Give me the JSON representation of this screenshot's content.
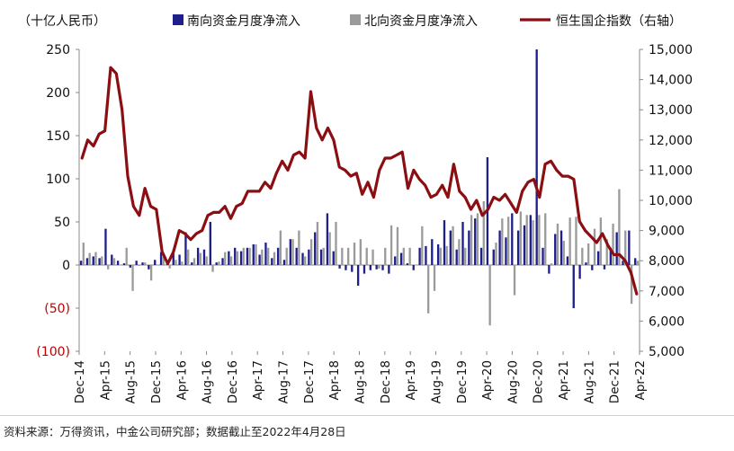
{
  "source": "资料来源：万得资讯，中金公司研究部；数据截止至2022年4月28日",
  "chart_data": {
    "type": "bar",
    "title": "",
    "ylabel": "（十亿人民币）",
    "y2label": "",
    "ylim": [
      -100,
      250
    ],
    "yticks_labels": [
      "250",
      "200",
      "150",
      "100",
      "50",
      "0",
      "(50)",
      "(100)"
    ],
    "y2lim": [
      5000,
      15000
    ],
    "y2ticks_labels": [
      "15,000",
      "14,000",
      "13,000",
      "12,000",
      "11,000",
      "10,000",
      "9,000",
      "8,000",
      "7,000",
      "6,000",
      "5,000"
    ],
    "x_tick_labels": [
      "Dec-14",
      "Apr-15",
      "Aug-15",
      "Dec-15",
      "Apr-16",
      "Aug-16",
      "Dec-16",
      "Apr-17",
      "Aug-17",
      "Dec-17",
      "Apr-18",
      "Aug-18",
      "Dec-18",
      "Apr-19",
      "Aug-19",
      "Dec-19",
      "Apr-20",
      "Aug-20",
      "Dec-20",
      "Apr-21",
      "Aug-21",
      "Dec-21",
      "Apr-22"
    ],
    "x_start": "2014-12",
    "legend": {
      "position": "top",
      "entries": [
        "南向资金月度净流入",
        "北向资金月度净流入",
        "恒生国企指数（右轴）"
      ]
    },
    "colors": {
      "southbound": "#1f1f8c",
      "northbound": "#9b9b9b",
      "hscei": "#8b0f12",
      "negative_tick": "#c00000"
    },
    "series": [
      {
        "name": "南向资金月度净流入",
        "type": "bar",
        "axis": "left",
        "values": [
          5,
          8,
          10,
          8,
          42,
          12,
          5,
          2,
          -3,
          5,
          3,
          -5,
          6,
          15,
          2,
          18,
          12,
          38,
          3,
          20,
          18,
          50,
          3,
          8,
          16,
          20,
          16,
          20,
          24,
          12,
          26,
          8,
          20,
          6,
          30,
          20,
          14,
          18,
          38,
          18,
          60,
          16,
          -4,
          -6,
          -8,
          -24,
          -10,
          -6,
          -5,
          -6,
          -10,
          10,
          14,
          2,
          -6,
          20,
          22,
          30,
          24,
          52,
          40,
          18,
          50,
          40,
          54,
          20,
          125,
          18,
          40,
          32,
          60,
          40,
          46,
          58,
          250,
          20,
          -10,
          36,
          40,
          10,
          -50,
          -16,
          3,
          -6,
          16,
          -5,
          20,
          38,
          5,
          40,
          8
        ]
      },
      {
        "name": "北向资金月度净流入",
        "type": "bar",
        "axis": "left",
        "values": [
          26,
          14,
          15,
          10,
          -5,
          8,
          0,
          20,
          -30,
          -1,
          3,
          -18,
          0,
          10,
          -4,
          6,
          4,
          18,
          8,
          14,
          10,
          -8,
          4,
          15,
          10,
          16,
          20,
          20,
          24,
          18,
          20,
          15,
          40,
          20,
          30,
          40,
          10,
          30,
          50,
          20,
          38,
          50,
          20,
          20,
          26,
          30,
          20,
          18,
          -4,
          20,
          46,
          44,
          20,
          20,
          0,
          45,
          -56,
          -30,
          20,
          22,
          45,
          30,
          20,
          58,
          60,
          74,
          -70,
          26,
          54,
          56,
          -35,
          62,
          58,
          52,
          58,
          60,
          2,
          48,
          28,
          55,
          56,
          20,
          25,
          42,
          55,
          30,
          48,
          88,
          40,
          -45,
          5
        ]
      },
      {
        "name": "恒生国企指数（右轴）",
        "type": "line",
        "axis": "right",
        "values": [
          11400,
          12000,
          11800,
          12200,
          12300,
          14400,
          14200,
          13000,
          10800,
          9800,
          9500,
          10400,
          9800,
          9700,
          8300,
          7900,
          8300,
          9000,
          8900,
          8700,
          8900,
          9000,
          9500,
          9600,
          9600,
          9800,
          9400,
          9800,
          9900,
          10300,
          10300,
          10300,
          10600,
          10400,
          10900,
          11300,
          11000,
          11500,
          11600,
          11400,
          13600,
          12400,
          12000,
          12400,
          12000,
          11100,
          11000,
          10800,
          10900,
          10200,
          10600,
          10100,
          11000,
          11400,
          11400,
          11500,
          11600,
          10400,
          11000,
          10700,
          10500,
          10100,
          10200,
          10500,
          10100,
          11200,
          10300,
          10100,
          9700,
          10000,
          9500,
          9700,
          10100,
          10000,
          10200,
          9900,
          9600,
          10300,
          10600,
          10700,
          10100,
          11200,
          11300,
          11000,
          10800,
          10800,
          10700,
          9300,
          9000,
          8800,
          8600,
          8900,
          8500,
          8200,
          8200,
          8000,
          7600,
          6900
        ]
      }
    ]
  }
}
